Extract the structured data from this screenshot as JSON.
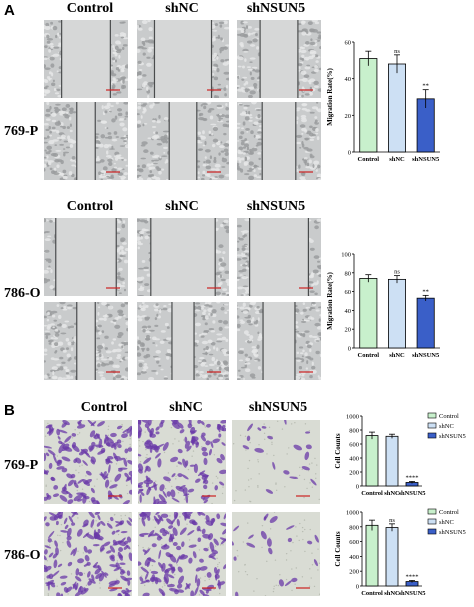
{
  "panel_a": {
    "letter": "A",
    "columns": [
      "Control",
      "shNC",
      "shNSUN5"
    ],
    "rows": [
      "769-P",
      "786-O"
    ]
  },
  "panel_b": {
    "letter": "B",
    "columns": [
      "Control",
      "shNC",
      "shNSUN5"
    ],
    "rows": [
      "769-P",
      "786-O"
    ],
    "legend": [
      "Control",
      "shNC",
      "shNSUN5"
    ]
  },
  "colors": {
    "control": "#c8f0cc",
    "shnc": "#cde0f4",
    "shnsun5": "#3a5fc8",
    "stain": "#6a3aa8",
    "scale_bar": "#cc2020"
  },
  "chart_data": [
    {
      "type": "bar",
      "categories": [
        "Control",
        "shNC",
        "shNSUN5"
      ],
      "values": [
        51,
        48,
        29
      ],
      "errors": [
        4,
        5,
        5
      ],
      "sig": [
        "",
        "ns",
        "**"
      ],
      "ylabel": "Migration Rate(%)",
      "ylim": [
        0,
        60
      ],
      "yticks": [
        0,
        20,
        40,
        60
      ]
    },
    {
      "type": "bar",
      "categories": [
        "Control",
        "shNC",
        "shNSUN5"
      ],
      "values": [
        74,
        73,
        53
      ],
      "errors": [
        4,
        4,
        3
      ],
      "sig": [
        "",
        "ns",
        "**"
      ],
      "ylabel": "Migration Rate(%)",
      "ylim": [
        0,
        100
      ],
      "yticks": [
        0,
        20,
        40,
        60,
        80,
        100
      ]
    },
    {
      "type": "bar",
      "categories": [
        "Control",
        "shNC",
        "shNSUN5"
      ],
      "values": [
        720,
        710,
        50
      ],
      "errors": [
        50,
        30,
        15
      ],
      "sig": [
        "",
        "",
        "****"
      ],
      "ylabel": "Cell Counts",
      "ylim": [
        0,
        1000
      ],
      "yticks": [
        0,
        200,
        400,
        600,
        800,
        1000
      ]
    },
    {
      "type": "bar",
      "categories": [
        "Control",
        "shNC",
        "shNSUN5"
      ],
      "values": [
        820,
        790,
        60
      ],
      "errors": [
        70,
        50,
        15
      ],
      "sig": [
        "",
        "ns",
        "****"
      ],
      "ylabel": "Cell Counts",
      "ylim": [
        0,
        1000
      ],
      "yticks": [
        0,
        200,
        400,
        600,
        800,
        1000
      ]
    }
  ]
}
